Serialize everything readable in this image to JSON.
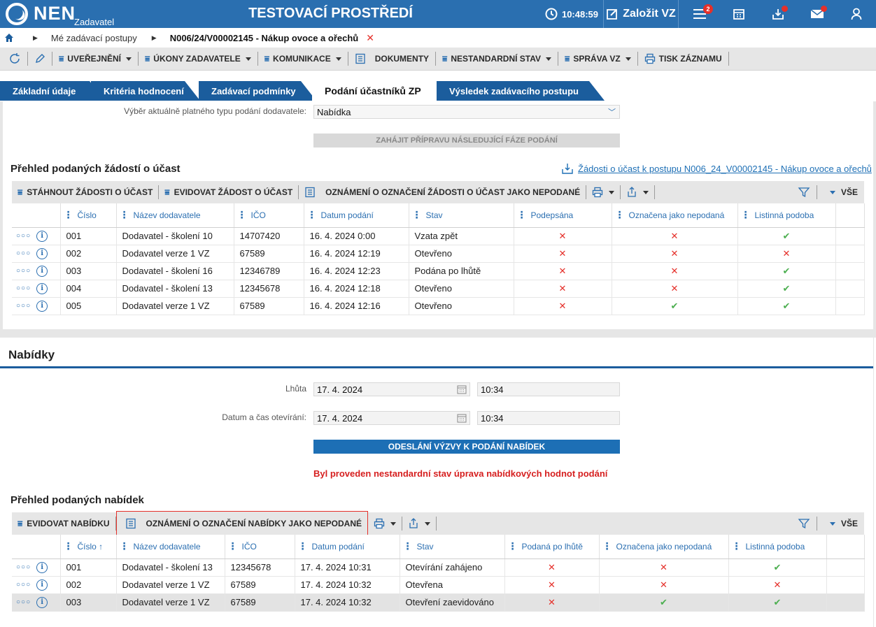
{
  "app": {
    "brand": "NEN",
    "brand_sub": "Zadavatel",
    "env_title": "TESTOVACÍ PROSTŘEDÍ",
    "time": "10:48:59",
    "new_vz_label": "Založit VZ",
    "menu_badge": "2"
  },
  "breadcrumb": {
    "items": [
      "Mé zadávací postupy",
      "N006/24/V00002145 - Nákup ovoce a ořechů"
    ]
  },
  "toolbar": {
    "items": [
      {
        "label": "UVEŘEJNĚNÍ",
        "caret": true
      },
      {
        "label": "ÚKONY ZADAVATELE",
        "caret": true
      },
      {
        "label": "KOMUNIKACE",
        "caret": true
      },
      {
        "label": "DOKUMENTY",
        "caret": false
      },
      {
        "label": "NESTANDARDNÍ STAV",
        "caret": true
      },
      {
        "label": "SPRÁVA VZ",
        "caret": true
      },
      {
        "label": "TISK ZÁZNAMU",
        "caret": false
      }
    ]
  },
  "tabs": [
    "Základní údaje",
    "Kritéria hodnocení",
    "Zadávací podmínky",
    "Podání účastníků ZP",
    "Výsledek zadávacího postupu"
  ],
  "submission_type": {
    "label": "Výběr aktuálně platného typu podání dodavatele:",
    "value": "Nabídka",
    "next_phase_button": "ZAHÁJIT PŘÍPRAVU NÁSLEDUJÍCÍ FÁZE PODÁNÍ"
  },
  "requests": {
    "title": "Přehled podaných žádostí o účast",
    "export_link": "Žádosti o účast k postupu N006_24_V00002145 - Nákup ovoce a ořechů",
    "toolbar": {
      "download": "STÁHNOUT ŽÁDOSTI O ÚČAST",
      "register": "EVIDOVAT ŽÁDOST O ÚČAST",
      "notice": "OZNÁMENÍ O OZNAČENÍ ŽÁDOSTI O ÚČAST JAKO NEPODANÉ",
      "all": "VŠE"
    },
    "columns": [
      "Číslo",
      "Název dodavatele",
      "IČO",
      "Datum podání",
      "Stav",
      "Podepsána",
      "Označena jako nepodaná",
      "Listinná podoba"
    ],
    "rows": [
      {
        "num": "001",
        "name": "Dodavatel - školení 10",
        "ico": "14707420",
        "date": "16. 4. 2024 0:00",
        "status": "Vzata zpět",
        "signed": false,
        "unsubmitted": false,
        "paper": true
      },
      {
        "num": "002",
        "name": "Dodavatel verze 1 VZ",
        "ico": "67589",
        "date": "16. 4. 2024 12:19",
        "status": "Otevřeno",
        "signed": false,
        "unsubmitted": false,
        "paper": false
      },
      {
        "num": "003",
        "name": "Dodavatel - školení 16",
        "ico": "12346789",
        "date": "16. 4. 2024 12:23",
        "status": "Podána po lhůtě",
        "signed": false,
        "unsubmitted": false,
        "paper": true
      },
      {
        "num": "004",
        "name": "Dodavatel - školení 13",
        "ico": "12345678",
        "date": "16. 4. 2024 12:18",
        "status": "Otevřeno",
        "signed": false,
        "unsubmitted": false,
        "paper": true
      },
      {
        "num": "005",
        "name": "Dodavatel verze 1 VZ",
        "ico": "67589",
        "date": "16. 4. 2024 12:16",
        "status": "Otevřeno",
        "signed": false,
        "unsubmitted": true,
        "paper": true
      }
    ]
  },
  "offers": {
    "section_title": "Nabídky",
    "deadline_label": "Lhůta",
    "deadline_date": "17. 4. 2024",
    "deadline_time": "10:34",
    "opening_label": "Datum a čas otevírání:",
    "opening_date": "17. 4. 2024",
    "opening_time": "10:34",
    "send_button": "ODESLÁNÍ VÝZVY K PODÁNÍ NABÍDEK",
    "warning": "Byl proveden nestandardní stav úprava nabídkových hodnot podání",
    "title": "Přehled podaných nabídek",
    "toolbar": {
      "register": "EVIDOVAT NABÍDKU",
      "notice": "OZNÁMENÍ O OZNAČENÍ NABÍDKY JAKO NEPODANÉ",
      "all": "VŠE"
    },
    "columns": [
      "Číslo ↑",
      "Název dodavatele",
      "IČO",
      "Datum podání",
      "Stav",
      "Podaná po lhůtě",
      "Označena jako nepodaná",
      "Listinná podoba"
    ],
    "rows": [
      {
        "num": "001",
        "name": "Dodavatel - školení 13",
        "ico": "12345678",
        "date": "17. 4. 2024 10:31",
        "status": "Otevírání zahájeno",
        "late": false,
        "unsubmitted": false,
        "paper": true
      },
      {
        "num": "002",
        "name": "Dodavatel verze 1 VZ",
        "ico": "67589",
        "date": "17. 4. 2024 10:32",
        "status": "Otevřena",
        "late": false,
        "unsubmitted": false,
        "paper": false
      },
      {
        "num": "003",
        "name": "Dodavatel verze 1 VZ",
        "ico": "67589",
        "date": "17. 4. 2024 10:32",
        "status": "Otevření zaevidováno",
        "late": false,
        "unsubmitted": true,
        "paper": true
      }
    ]
  },
  "colors": {
    "brand_blue": "#2a6fb0",
    "tab_blue": "#1b5d9d",
    "accent_blue": "#1d6fb5",
    "ok_green": "#4caf50",
    "error_red": "#e5302a",
    "highlight_border": "#e5302a"
  }
}
